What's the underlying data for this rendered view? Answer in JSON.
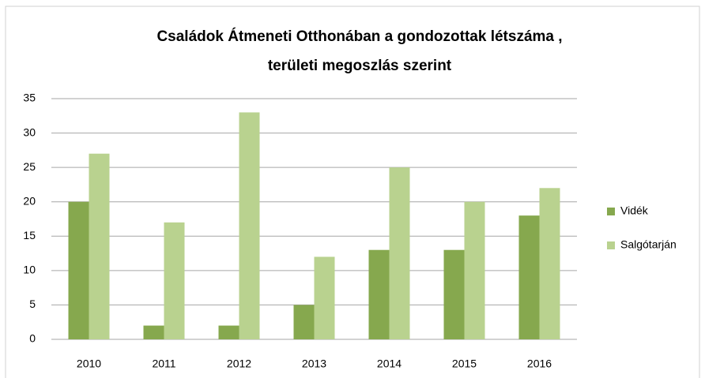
{
  "chart_data": {
    "type": "bar",
    "title": [
      "Családok Átmeneti Otthonában a gondozottak létszáma ,",
      "területi megoszlás szerint"
    ],
    "categories": [
      "2010",
      "2011",
      "2012",
      "2013",
      "2014",
      "2015",
      "2016"
    ],
    "series": [
      {
        "name": "Vidék",
        "color": "#86a84e",
        "values": [
          20,
          2,
          2,
          5,
          13,
          13,
          18
        ]
      },
      {
        "name": "Salgótarján",
        "color": "#b9d28f",
        "values": [
          27,
          17,
          33,
          12,
          25,
          20,
          22
        ]
      }
    ],
    "ylim": [
      0,
      35
    ],
    "yticks": [
      0,
      5,
      10,
      15,
      20,
      25,
      30,
      35
    ],
    "grid": true,
    "legend": "right"
  }
}
